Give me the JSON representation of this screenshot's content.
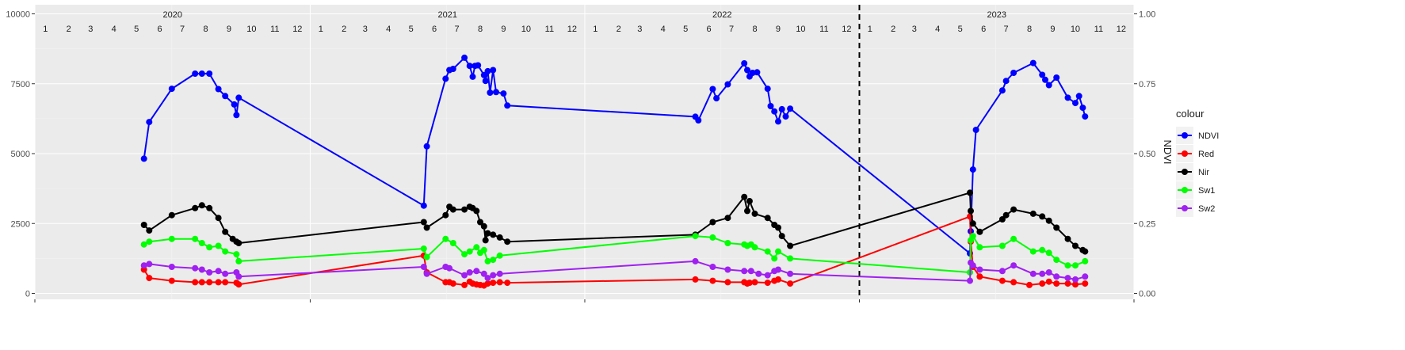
{
  "chart_data": {
    "type": "line",
    "y_left": {
      "ylim": [
        0,
        10000
      ],
      "ticks": [
        "0",
        "2500",
        "5000",
        "7500",
        "10000"
      ]
    },
    "y_right": {
      "title": "NDVI",
      "ylim": [
        0,
        1
      ],
      "ticks": [
        "0.00",
        "0.25",
        "0.50",
        "0.75",
        "1.00"
      ]
    },
    "x_range": [
      "2020-01-01",
      "2024-01-01"
    ],
    "years": [
      "2020",
      "2021",
      "2022",
      "2023"
    ],
    "months": [
      "1",
      "2",
      "3",
      "4",
      "5",
      "6",
      "7",
      "8",
      "9",
      "10",
      "11",
      "12"
    ],
    "vline": "2023-01-01",
    "legend": {
      "title": "colour",
      "placement": "right"
    },
    "grid": true,
    "series": [
      {
        "name": "NDVI",
        "color": "#0000ff",
        "data": [
          [
            "2020-05-25",
            4820
          ],
          [
            "2020-06-01",
            6130
          ],
          [
            "2020-07-01",
            7320
          ],
          [
            "2020-08-01",
            7860
          ],
          [
            "2020-08-10",
            7860
          ],
          [
            "2020-08-20",
            7860
          ],
          [
            "2020-09-01",
            7310
          ],
          [
            "2020-09-10",
            7060
          ],
          [
            "2020-09-22",
            6760
          ],
          [
            "2020-09-25",
            6380
          ],
          [
            "2020-09-28",
            7000
          ],
          [
            "2021-06-01",
            3140
          ],
          [
            "2021-06-05",
            5260
          ],
          [
            "2021-06-30",
            7680
          ],
          [
            "2021-07-05",
            7990
          ],
          [
            "2021-07-10",
            8030
          ],
          [
            "2021-07-25",
            8430
          ],
          [
            "2021-08-01",
            8140
          ],
          [
            "2021-08-05",
            7750
          ],
          [
            "2021-08-08",
            8140
          ],
          [
            "2021-08-12",
            8160
          ],
          [
            "2021-08-20",
            7810
          ],
          [
            "2021-08-22",
            7600
          ],
          [
            "2021-08-25",
            7950
          ],
          [
            "2021-08-28",
            7180
          ],
          [
            "2021-09-01",
            7990
          ],
          [
            "2021-09-05",
            7200
          ],
          [
            "2021-09-15",
            7150
          ],
          [
            "2021-09-20",
            6720
          ],
          [
            "2022-05-28",
            6320
          ],
          [
            "2022-06-01",
            6190
          ],
          [
            "2022-06-20",
            7310
          ],
          [
            "2022-06-25",
            6980
          ],
          [
            "2022-07-10",
            7480
          ],
          [
            "2022-08-01",
            8230
          ],
          [
            "2022-08-05",
            7990
          ],
          [
            "2022-08-08",
            7760
          ],
          [
            "2022-08-12",
            7890
          ],
          [
            "2022-08-18",
            7910
          ],
          [
            "2022-09-01",
            7320
          ],
          [
            "2022-09-05",
            6700
          ],
          [
            "2022-09-10",
            6510
          ],
          [
            "2022-09-15",
            6150
          ],
          [
            "2022-09-20",
            6590
          ],
          [
            "2022-09-25",
            6330
          ],
          [
            "2022-10-01",
            6610
          ],
          [
            "2023-05-28",
            1430
          ],
          [
            "2023-05-29",
            2220
          ],
          [
            "2023-06-01",
            4430
          ],
          [
            "2023-06-05",
            5850
          ],
          [
            "2023-07-10",
            7260
          ],
          [
            "2023-07-15",
            7600
          ],
          [
            "2023-07-25",
            7890
          ],
          [
            "2023-08-20",
            8240
          ],
          [
            "2023-09-01",
            7820
          ],
          [
            "2023-09-05",
            7640
          ],
          [
            "2023-09-10",
            7450
          ],
          [
            "2023-09-20",
            7720
          ],
          [
            "2023-10-05",
            7000
          ],
          [
            "2023-10-15",
            6810
          ],
          [
            "2023-10-20",
            7060
          ],
          [
            "2023-10-25",
            6640
          ],
          [
            "2023-10-28",
            6330
          ]
        ]
      },
      {
        "name": "Red",
        "color": "#ff0000",
        "data": [
          [
            "2020-05-25",
            850
          ],
          [
            "2020-06-01",
            550
          ],
          [
            "2020-07-01",
            450
          ],
          [
            "2020-08-01",
            400
          ],
          [
            "2020-08-10",
            400
          ],
          [
            "2020-08-20",
            400
          ],
          [
            "2020-09-01",
            400
          ],
          [
            "2020-09-10",
            400
          ],
          [
            "2020-09-25",
            380
          ],
          [
            "2020-09-28",
            320
          ],
          [
            "2021-06-01",
            1350
          ],
          [
            "2021-06-05",
            750
          ],
          [
            "2021-06-30",
            400
          ],
          [
            "2021-07-05",
            400
          ],
          [
            "2021-07-10",
            350
          ],
          [
            "2021-07-25",
            300
          ],
          [
            "2021-08-01",
            420
          ],
          [
            "2021-08-05",
            350
          ],
          [
            "2021-08-10",
            320
          ],
          [
            "2021-08-15",
            300
          ],
          [
            "2021-08-20",
            280
          ],
          [
            "2021-08-25",
            350
          ],
          [
            "2021-09-01",
            380
          ],
          [
            "2021-09-10",
            400
          ],
          [
            "2021-09-20",
            380
          ],
          [
            "2022-05-28",
            500
          ],
          [
            "2022-06-20",
            450
          ],
          [
            "2022-07-10",
            400
          ],
          [
            "2022-08-01",
            400
          ],
          [
            "2022-08-05",
            350
          ],
          [
            "2022-08-08",
            380
          ],
          [
            "2022-08-15",
            400
          ],
          [
            "2022-09-01",
            380
          ],
          [
            "2022-09-10",
            450
          ],
          [
            "2022-09-15",
            500
          ],
          [
            "2022-10-01",
            350
          ],
          [
            "2023-05-28",
            2750
          ],
          [
            "2023-05-29",
            1850
          ],
          [
            "2023-06-01",
            950
          ],
          [
            "2023-06-10",
            600
          ],
          [
            "2023-07-10",
            450
          ],
          [
            "2023-07-25",
            400
          ],
          [
            "2023-08-15",
            300
          ],
          [
            "2023-09-01",
            350
          ],
          [
            "2023-09-10",
            420
          ],
          [
            "2023-09-20",
            350
          ],
          [
            "2023-10-05",
            350
          ],
          [
            "2023-10-15",
            320
          ],
          [
            "2023-10-28",
            350
          ]
        ]
      },
      {
        "name": "Nir",
        "color": "#000000",
        "data": [
          [
            "2020-05-25",
            2450
          ],
          [
            "2020-06-01",
            2250
          ],
          [
            "2020-07-01",
            2800
          ],
          [
            "2020-08-01",
            3050
          ],
          [
            "2020-08-10",
            3150
          ],
          [
            "2020-08-20",
            3050
          ],
          [
            "2020-09-01",
            2700
          ],
          [
            "2020-09-10",
            2200
          ],
          [
            "2020-09-20",
            1950
          ],
          [
            "2020-09-25",
            1850
          ],
          [
            "2020-09-28",
            1800
          ],
          [
            "2021-06-01",
            2550
          ],
          [
            "2021-06-05",
            2350
          ],
          [
            "2021-06-30",
            2800
          ],
          [
            "2021-07-05",
            3100
          ],
          [
            "2021-07-10",
            3000
          ],
          [
            "2021-07-25",
            3000
          ],
          [
            "2021-08-01",
            3100
          ],
          [
            "2021-08-05",
            3050
          ],
          [
            "2021-08-10",
            2950
          ],
          [
            "2021-08-15",
            2550
          ],
          [
            "2021-08-20",
            2400
          ],
          [
            "2021-08-22",
            1900
          ],
          [
            "2021-08-25",
            2150
          ],
          [
            "2021-09-01",
            2100
          ],
          [
            "2021-09-10",
            2000
          ],
          [
            "2021-09-20",
            1850
          ],
          [
            "2022-05-28",
            2100
          ],
          [
            "2022-06-20",
            2550
          ],
          [
            "2022-07-10",
            2700
          ],
          [
            "2022-08-01",
            3450
          ],
          [
            "2022-08-05",
            2950
          ],
          [
            "2022-08-08",
            3300
          ],
          [
            "2022-08-15",
            2850
          ],
          [
            "2022-09-01",
            2700
          ],
          [
            "2022-09-10",
            2450
          ],
          [
            "2022-09-15",
            2350
          ],
          [
            "2022-09-20",
            2050
          ],
          [
            "2022-10-01",
            1700
          ],
          [
            "2023-05-28",
            3600
          ],
          [
            "2023-05-29",
            2950
          ],
          [
            "2023-06-01",
            2500
          ],
          [
            "2023-06-10",
            2200
          ],
          [
            "2023-07-10",
            2650
          ],
          [
            "2023-07-15",
            2800
          ],
          [
            "2023-07-25",
            3000
          ],
          [
            "2023-08-20",
            2850
          ],
          [
            "2023-09-01",
            2750
          ],
          [
            "2023-09-10",
            2600
          ],
          [
            "2023-09-20",
            2350
          ],
          [
            "2023-10-05",
            1950
          ],
          [
            "2023-10-15",
            1700
          ],
          [
            "2023-10-25",
            1550
          ],
          [
            "2023-10-28",
            1500
          ]
        ]
      },
      {
        "name": "Sw1",
        "color": "#00ff00",
        "data": [
          [
            "2020-05-25",
            1750
          ],
          [
            "2020-06-01",
            1850
          ],
          [
            "2020-07-01",
            1950
          ],
          [
            "2020-08-01",
            1950
          ],
          [
            "2020-08-10",
            1800
          ],
          [
            "2020-08-20",
            1650
          ],
          [
            "2020-09-01",
            1700
          ],
          [
            "2020-09-10",
            1500
          ],
          [
            "2020-09-25",
            1400
          ],
          [
            "2020-09-28",
            1150
          ],
          [
            "2021-06-01",
            1600
          ],
          [
            "2021-06-05",
            1300
          ],
          [
            "2021-06-30",
            1950
          ],
          [
            "2021-07-10",
            1800
          ],
          [
            "2021-07-25",
            1400
          ],
          [
            "2021-08-01",
            1500
          ],
          [
            "2021-08-10",
            1650
          ],
          [
            "2021-08-15",
            1450
          ],
          [
            "2021-08-20",
            1550
          ],
          [
            "2021-08-25",
            1150
          ],
          [
            "2021-09-01",
            1200
          ],
          [
            "2021-09-10",
            1350
          ],
          [
            "2022-05-28",
            2050
          ],
          [
            "2022-06-20",
            2000
          ],
          [
            "2022-07-10",
            1800
          ],
          [
            "2022-08-01",
            1750
          ],
          [
            "2022-08-05",
            1700
          ],
          [
            "2022-08-10",
            1750
          ],
          [
            "2022-08-15",
            1650
          ],
          [
            "2022-09-01",
            1500
          ],
          [
            "2022-09-10",
            1250
          ],
          [
            "2022-09-15",
            1500
          ],
          [
            "2022-10-01",
            1250
          ],
          [
            "2023-05-28",
            750
          ],
          [
            "2023-05-29",
            1900
          ],
          [
            "2023-06-01",
            2050
          ],
          [
            "2023-06-10",
            1650
          ],
          [
            "2023-07-10",
            1700
          ],
          [
            "2023-07-25",
            1950
          ],
          [
            "2023-08-20",
            1500
          ],
          [
            "2023-09-01",
            1550
          ],
          [
            "2023-09-10",
            1450
          ],
          [
            "2023-09-20",
            1200
          ],
          [
            "2023-10-05",
            1000
          ],
          [
            "2023-10-15",
            1000
          ],
          [
            "2023-10-28",
            1150
          ]
        ]
      },
      {
        "name": "Sw2",
        "color": "#a020f0",
        "data": [
          [
            "2020-05-25",
            1000
          ],
          [
            "2020-06-01",
            1050
          ],
          [
            "2020-07-01",
            950
          ],
          [
            "2020-08-01",
            900
          ],
          [
            "2020-08-10",
            850
          ],
          [
            "2020-08-20",
            750
          ],
          [
            "2020-09-01",
            800
          ],
          [
            "2020-09-10",
            700
          ],
          [
            "2020-09-25",
            750
          ],
          [
            "2020-09-28",
            600
          ],
          [
            "2021-06-01",
            950
          ],
          [
            "2021-06-05",
            700
          ],
          [
            "2021-06-30",
            950
          ],
          [
            "2021-07-05",
            900
          ],
          [
            "2021-07-25",
            650
          ],
          [
            "2021-08-01",
            750
          ],
          [
            "2021-08-10",
            800
          ],
          [
            "2021-08-20",
            700
          ],
          [
            "2021-08-25",
            550
          ],
          [
            "2021-09-01",
            650
          ],
          [
            "2021-09-10",
            700
          ],
          [
            "2022-05-28",
            1150
          ],
          [
            "2022-06-20",
            950
          ],
          [
            "2022-07-10",
            850
          ],
          [
            "2022-08-01",
            800
          ],
          [
            "2022-08-10",
            800
          ],
          [
            "2022-08-20",
            700
          ],
          [
            "2022-09-01",
            650
          ],
          [
            "2022-09-10",
            800
          ],
          [
            "2022-09-15",
            850
          ],
          [
            "2022-10-01",
            700
          ],
          [
            "2023-05-28",
            450
          ],
          [
            "2023-05-29",
            1100
          ],
          [
            "2023-06-01",
            1000
          ],
          [
            "2023-06-10",
            850
          ],
          [
            "2023-07-10",
            800
          ],
          [
            "2023-07-25",
            1000
          ],
          [
            "2023-08-20",
            700
          ],
          [
            "2023-09-01",
            700
          ],
          [
            "2023-09-10",
            750
          ],
          [
            "2023-09-20",
            600
          ],
          [
            "2023-10-05",
            550
          ],
          [
            "2023-10-15",
            500
          ],
          [
            "2023-10-28",
            600
          ]
        ]
      }
    ]
  }
}
